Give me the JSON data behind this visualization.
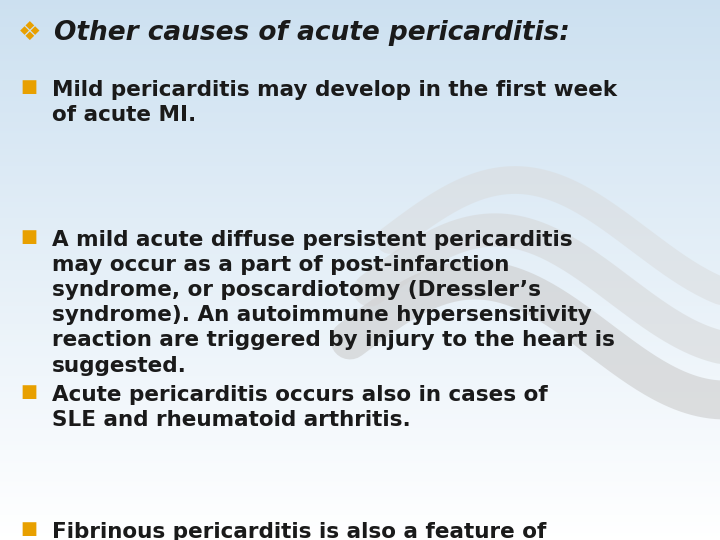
{
  "bg_color_top": "#cce0f0",
  "bg_color_bottom": "#ffffff",
  "title": "Other causes of acute pericarditis:",
  "title_color": "#1a1a1a",
  "title_bullet_color": "#e8a000",
  "bullet_color": "#e8a000",
  "text_color": "#1a1a1a",
  "bullet_items": [
    "Mild pericarditis may develop in the first week\nof acute MI.",
    "A mild acute diffuse persistent pericarditis\nmay occur as a part of post-infarction\nsyndrome, or poscardiotomy (Dressler’s\nsyndrome). An autoimmune hypersensitivity\nreaction are triggered by injury to the heart is\nsuggested.",
    "Acute pericarditis occurs also in cases of\nSLE and rheumatoid arthritis.",
    "Fibrinous pericarditis is also a feature of\nuremia, and is related to the level of blood\nurea and relieved spontaneously by dialysis."
  ],
  "figsize": [
    7.2,
    5.4
  ],
  "dpi": 100
}
